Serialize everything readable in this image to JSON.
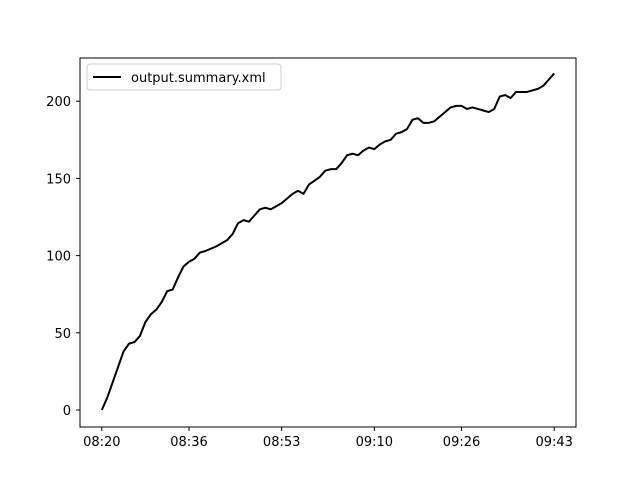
{
  "chart_data": {
    "type": "line",
    "title": "",
    "xlabel": "",
    "ylabel": "",
    "x_ticks": [
      "08:20",
      "08:36",
      "08:53",
      "09:10",
      "09:26",
      "09:43"
    ],
    "y_ticks": [
      "0",
      "50",
      "100",
      "150",
      "200"
    ],
    "xlim": [
      "08:16",
      "09:47"
    ],
    "ylim": [
      -11,
      228
    ],
    "grid": false,
    "legend": {
      "placement": "top-left",
      "entries": [
        "output.summary.xml"
      ]
    },
    "series": [
      {
        "name": "output.summary.xml",
        "color": "#000000",
        "points": [
          [
            "08:20",
            0
          ],
          [
            "08:21",
            8
          ],
          [
            "08:22",
            18
          ],
          [
            "08:23",
            28
          ],
          [
            "08:24",
            38
          ],
          [
            "08:25",
            43
          ],
          [
            "08:26",
            44
          ],
          [
            "08:27",
            48
          ],
          [
            "08:28",
            57
          ],
          [
            "08:29",
            62
          ],
          [
            "08:30",
            65
          ],
          [
            "08:31",
            70
          ],
          [
            "08:32",
            77
          ],
          [
            "08:33",
            78
          ],
          [
            "08:34",
            86
          ],
          [
            "08:35",
            93
          ],
          [
            "08:36",
            96
          ],
          [
            "08:37",
            98
          ],
          [
            "08:38",
            102
          ],
          [
            "08:39",
            103
          ],
          [
            "08:41",
            106
          ],
          [
            "08:43",
            110
          ],
          [
            "08:44",
            114
          ],
          [
            "08:45",
            121
          ],
          [
            "08:46",
            123
          ],
          [
            "08:47",
            122
          ],
          [
            "08:48",
            126
          ],
          [
            "08:49",
            130
          ],
          [
            "08:50",
            131
          ],
          [
            "08:51",
            130
          ],
          [
            "08:52",
            132
          ],
          [
            "08:53",
            134
          ],
          [
            "08:55",
            140
          ],
          [
            "08:56",
            142
          ],
          [
            "08:57",
            140
          ],
          [
            "08:58",
            146
          ],
          [
            "09:00",
            151
          ],
          [
            "09:01",
            155
          ],
          [
            "09:02",
            156
          ],
          [
            "09:03",
            156
          ],
          [
            "09:04",
            160
          ],
          [
            "09:05",
            165
          ],
          [
            "09:06",
            166
          ],
          [
            "09:07",
            165
          ],
          [
            "09:08",
            168
          ],
          [
            "09:09",
            170
          ],
          [
            "09:10",
            169
          ],
          [
            "09:11",
            172
          ],
          [
            "09:12",
            174
          ],
          [
            "09:13",
            175
          ],
          [
            "09:14",
            179
          ],
          [
            "09:15",
            180
          ],
          [
            "09:16",
            182
          ],
          [
            "09:17",
            188
          ],
          [
            "09:18",
            189
          ],
          [
            "09:19",
            186
          ],
          [
            "09:20",
            186
          ],
          [
            "09:21",
            187
          ],
          [
            "09:22",
            190
          ],
          [
            "09:23",
            193
          ],
          [
            "09:24",
            196
          ],
          [
            "09:25",
            197
          ],
          [
            "09:26",
            197
          ],
          [
            "09:27",
            195
          ],
          [
            "09:28",
            196
          ],
          [
            "09:29",
            195
          ],
          [
            "09:30",
            194
          ],
          [
            "09:31",
            193
          ],
          [
            "09:32",
            195
          ],
          [
            "09:33",
            203
          ],
          [
            "09:34",
            204
          ],
          [
            "09:35",
            202
          ],
          [
            "09:36",
            206
          ],
          [
            "09:37",
            206
          ],
          [
            "09:38",
            206
          ],
          [
            "09:39",
            207
          ],
          [
            "09:40",
            208
          ],
          [
            "09:41",
            210
          ],
          [
            "09:42",
            214
          ],
          [
            "09:43",
            218
          ]
        ]
      }
    ]
  }
}
